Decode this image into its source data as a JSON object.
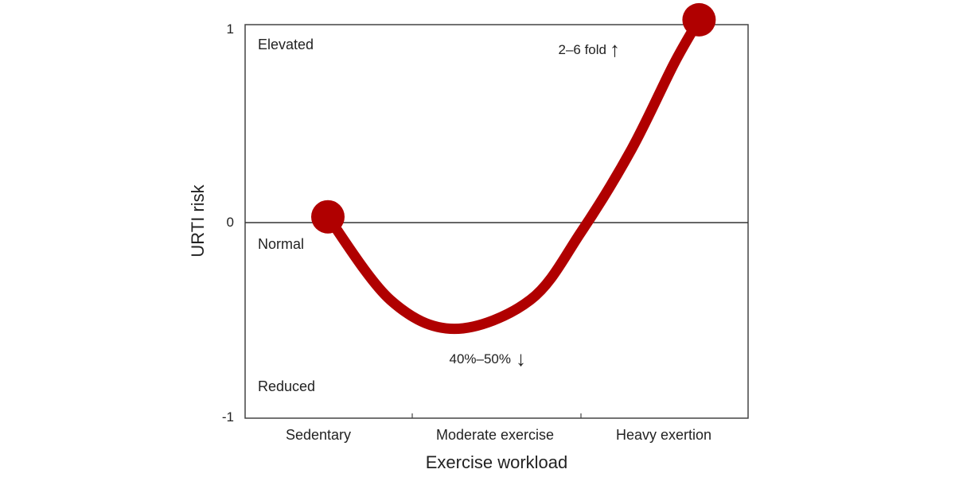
{
  "chart_data": {
    "type": "line",
    "title": "",
    "xlabel": "Exercise workload",
    "ylabel": "URTI risk",
    "categories": [
      "Sedentary",
      "Moderate exercise",
      "Heavy exertion"
    ],
    "y_ticks": [
      "1",
      "0",
      "-1"
    ],
    "ylim": [
      -1,
      1
    ],
    "series": [
      {
        "name": "URTI risk",
        "color": "#b00000",
        "points": [
          {
            "x": 0.0,
            "y": 0.03
          },
          {
            "x": 0.37,
            "y": -0.4
          },
          {
            "x": 0.75,
            "y": -0.55
          },
          {
            "x": 1.2,
            "y": -0.4
          },
          {
            "x": 1.5,
            "y": -0.05
          },
          {
            "x": 1.8,
            "y": 0.38
          },
          {
            "x": 2.05,
            "y": 0.82
          },
          {
            "x": 2.2,
            "y": 1.05
          }
        ],
        "end_markers": true
      }
    ],
    "region_labels": {
      "elevated": "Elevated",
      "normal": "Normal",
      "reduced": "Reduced"
    },
    "annotations": {
      "peak": {
        "text": "2–6 fold",
        "arrow": "↑"
      },
      "trough": {
        "text": "40%–50%",
        "arrow": "↓"
      }
    },
    "reference_line": {
      "y": 0
    },
    "grid": false
  }
}
